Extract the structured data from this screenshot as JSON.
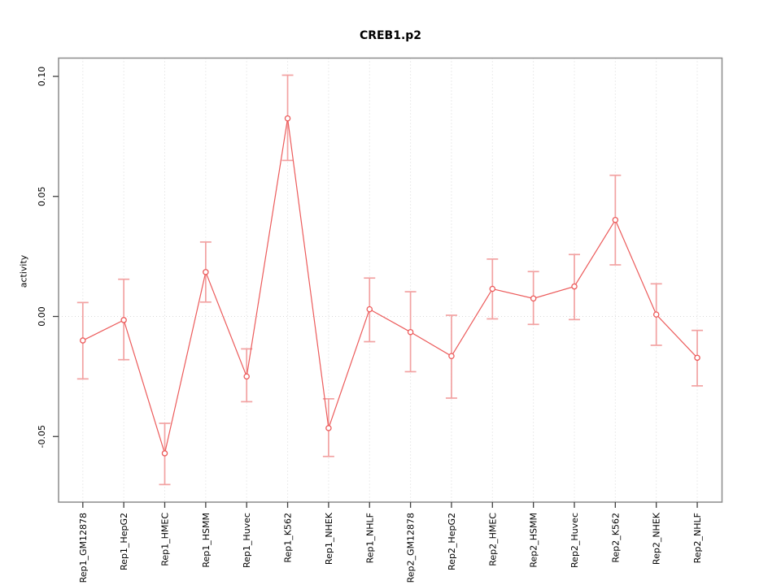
{
  "chart_data": {
    "type": "line",
    "title": "CREB1.p2",
    "xlabel": "",
    "ylabel": "activity",
    "categories": [
      "Rep1_GM12878",
      "Rep1_HepG2",
      "Rep1_HMEC",
      "Rep1_HSMM",
      "Rep1_Huvec",
      "Rep1_K562",
      "Rep1_NHEK",
      "Rep1_NHLF",
      "Rep2_GM12878",
      "Rep2_HepG2",
      "Rep2_HMEC",
      "Rep2_HSMM",
      "Rep2_Huvec",
      "Rep2_K562",
      "Rep2_NHEK",
      "Rep2_NHLF"
    ],
    "series": [
      {
        "name": "activity",
        "values": [
          -0.01,
          -0.0015,
          -0.057,
          0.0185,
          -0.025,
          0.0825,
          -0.0465,
          0.003,
          -0.0065,
          -0.0165,
          0.0115,
          0.0075,
          0.0125,
          0.0402,
          0.0008,
          -0.0172
        ],
        "error_low": [
          -0.026,
          -0.018,
          -0.07,
          0.006,
          -0.0355,
          0.065,
          -0.0583,
          -0.0105,
          -0.023,
          -0.034,
          -0.001,
          -0.0033,
          -0.0013,
          0.0215,
          -0.012,
          -0.0289
        ],
        "error_high": [
          0.0058,
          0.0155,
          -0.0445,
          0.031,
          -0.0135,
          0.1005,
          -0.0343,
          0.016,
          0.0103,
          0.0005,
          0.0239,
          0.0187,
          0.0258,
          0.0588,
          0.0136,
          -0.0058
        ]
      }
    ],
    "yticks": [
      {
        "value": -0.05,
        "label": "-0.05"
      },
      {
        "value": 0.0,
        "label": "0.00"
      },
      {
        "value": 0.05,
        "label": "0.05"
      },
      {
        "value": 0.1,
        "label": "0.10"
      }
    ],
    "ylim": [
      -0.077,
      0.108
    ],
    "legend": "none",
    "grid": {
      "vertical_per_category": true,
      "horizontal_zero_line": true,
      "style": "dotted"
    },
    "colors": {
      "series": "#ec5b5b",
      "error_bars": "#f2a2a2",
      "gridline": "#d9d9d9",
      "axis_box": "#8c8c8c",
      "tick": "#3f3f3f",
      "text": "#000000",
      "background": "#ffffff"
    }
  }
}
